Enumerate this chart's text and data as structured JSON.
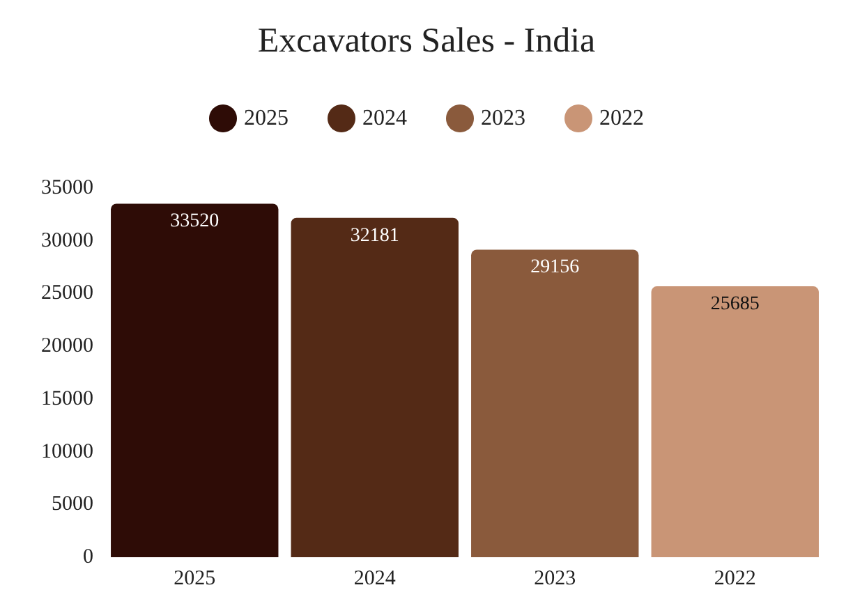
{
  "chart_data": {
    "type": "bar",
    "title": "Excavators Sales - India",
    "categories": [
      "2025",
      "2024",
      "2023",
      "2022"
    ],
    "series": [
      {
        "name": "2025",
        "color": "#2e0c06",
        "values": [
          33520,
          null,
          null,
          null
        ]
      },
      {
        "name": "2024",
        "color": "#542a16",
        "values": [
          null,
          32181,
          null,
          null
        ]
      },
      {
        "name": "2023",
        "color": "#8a5a3c",
        "values": [
          null,
          null,
          29156,
          null
        ]
      },
      {
        "name": "2022",
        "color": "#c99576",
        "values": [
          null,
          null,
          null,
          25685
        ]
      }
    ],
    "ylim": [
      0,
      35000
    ],
    "yticks": [
      0,
      5000,
      10000,
      15000,
      20000,
      25000,
      30000,
      35000
    ],
    "data_labels": true,
    "legend": "top",
    "grid": false
  }
}
